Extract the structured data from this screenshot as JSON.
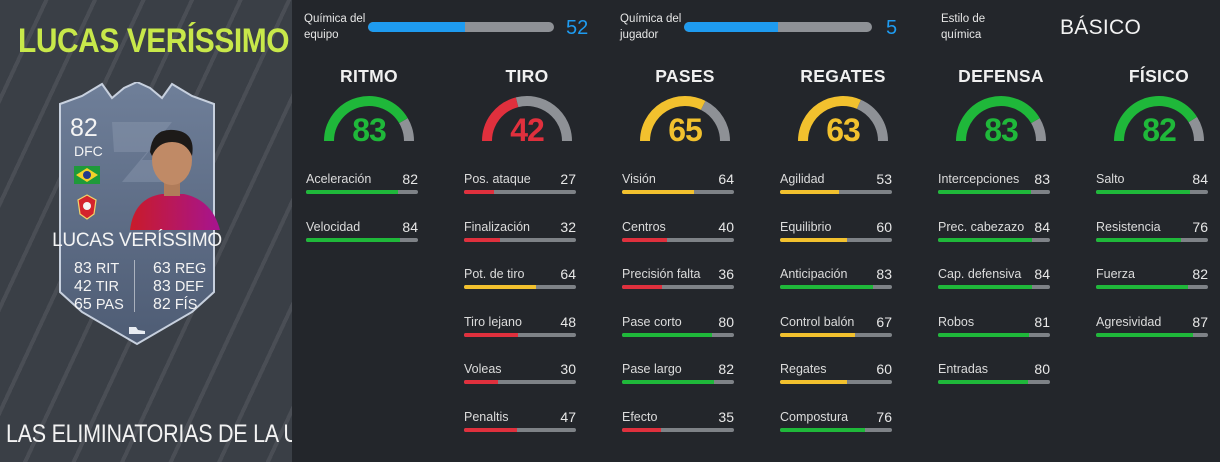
{
  "player": {
    "name": "LUCAS VERÍSSIMO",
    "promo": "LAS ELIMINATORIAS DE LA UCI"
  },
  "card": {
    "rating": "82",
    "position": "DFC",
    "name": "LUCAS VERÍSSIMO",
    "stats_left": [
      {
        "value": "83",
        "label": "RIT"
      },
      {
        "value": "42",
        "label": "TIR"
      },
      {
        "value": "65",
        "label": "PAS"
      }
    ],
    "stats_right": [
      {
        "value": "63",
        "label": "REG"
      },
      {
        "value": "83",
        "label": "DEF"
      },
      {
        "value": "82",
        "label": "FÍS"
      }
    ]
  },
  "chemistry": {
    "team_label_1": "Química del",
    "team_label_2": "equipo",
    "team_value": "52",
    "team_fraction": 0.52,
    "player_label_1": "Química del",
    "player_label_2": "jugador",
    "player_value": "5",
    "player_fraction": 0.5,
    "style_label_1": "Estilo de",
    "style_label_2": "química",
    "style_value": "BÁSICO"
  },
  "colors": {
    "green": "#1fb83a",
    "yellow": "#f2c12e",
    "red": "#e0303d",
    "blue": "#1e9bf0",
    "lime": "#c8e84a"
  },
  "categories": [
    {
      "title": "RITMO",
      "value": 83,
      "attributes": [
        {
          "label": "Aceleración",
          "value": 82
        },
        {
          "label": "Velocidad",
          "value": 84
        }
      ]
    },
    {
      "title": "TIRO",
      "value": 42,
      "attributes": [
        {
          "label": "Pos. ataque",
          "value": 27
        },
        {
          "label": "Finalización",
          "value": 32
        },
        {
          "label": "Pot. de tiro",
          "value": 64
        },
        {
          "label": "Tiro lejano",
          "value": 48
        },
        {
          "label": "Voleas",
          "value": 30
        },
        {
          "label": "Penaltis",
          "value": 47
        }
      ]
    },
    {
      "title": "PASES",
      "value": 65,
      "attributes": [
        {
          "label": "Visión",
          "value": 64
        },
        {
          "label": "Centros",
          "value": 40
        },
        {
          "label": "Precisión falta",
          "value": 36
        },
        {
          "label": "Pase corto",
          "value": 80
        },
        {
          "label": "Pase largo",
          "value": 82
        },
        {
          "label": "Efecto",
          "value": 35
        }
      ]
    },
    {
      "title": "REGATES",
      "value": 63,
      "attributes": [
        {
          "label": "Agilidad",
          "value": 53
        },
        {
          "label": "Equilibrio",
          "value": 60
        },
        {
          "label": "Anticipación",
          "value": 83
        },
        {
          "label": "Control balón",
          "value": 67
        },
        {
          "label": "Regates",
          "value": 60
        },
        {
          "label": "Compostura",
          "value": 76
        }
      ]
    },
    {
      "title": "DEFENSA",
      "value": 83,
      "attributes": [
        {
          "label": "Intercepciones",
          "value": 83
        },
        {
          "label": "Prec. cabezazo",
          "value": 84
        },
        {
          "label": "Cap. defensiva",
          "value": 84
        },
        {
          "label": "Robos",
          "value": 81
        },
        {
          "label": "Entradas",
          "value": 80
        }
      ]
    },
    {
      "title": "FÍSICO",
      "value": 82,
      "attributes": [
        {
          "label": "Salto",
          "value": 84
        },
        {
          "label": "Resistencia",
          "value": 76
        },
        {
          "label": "Fuerza",
          "value": 82
        },
        {
          "label": "Agresividad",
          "value": 87
        }
      ]
    }
  ]
}
